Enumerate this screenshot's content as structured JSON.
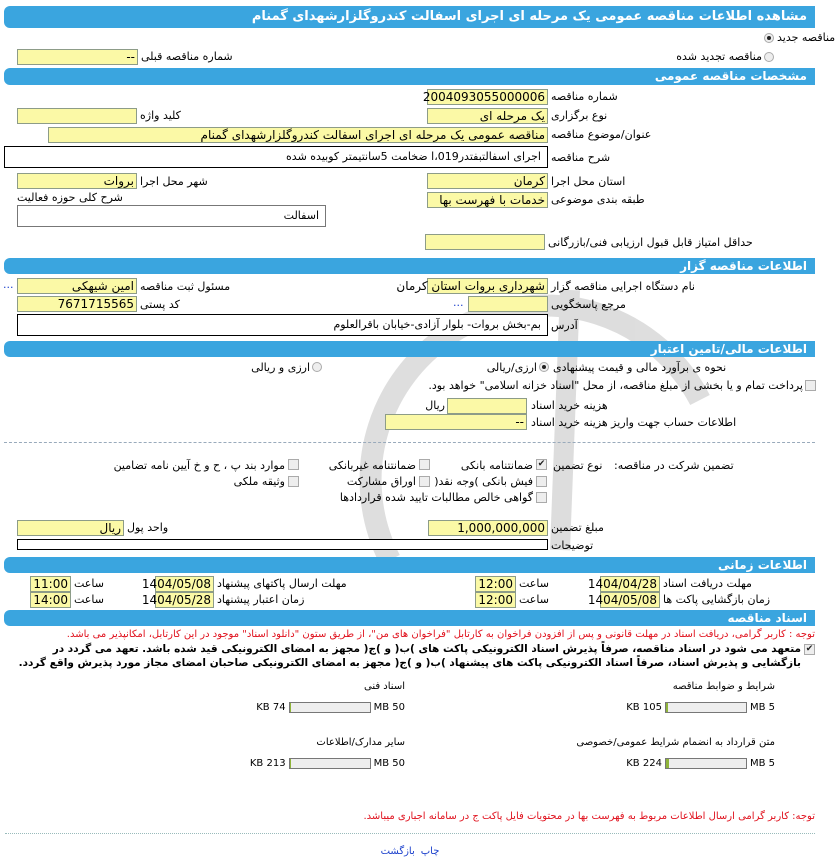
{
  "header": {
    "title": "مشاهده اطلاعات مناقصه عمومی یک مرحله ای اجرای اسفالت کندروگلزارشهدای گمنام"
  },
  "tender_type": {
    "new_label": "مناقصه جدید",
    "renewed_label": "مناقصه تجدید شده",
    "selected": "new",
    "prev_number_label": "شماره مناقصه قبلی",
    "prev_number": "--"
  },
  "general": {
    "section_title": "مشخصات مناقصه عمومی",
    "number_label": "شماره مناقصه",
    "number": "2004093055000006",
    "type_label": "نوع برگزاری",
    "type": "یک مرحله ای",
    "keyword_label": "کلید واژه",
    "keyword": "",
    "title_label": "عنوان/موضوع مناقصه",
    "title": "مناقصه عمومی یک مرحله ای اجرای اسفالت کندروگلزارشهدای گمنام",
    "desc_label": "شرح مناقصه",
    "desc": "اجرای اسفالتبفتدر019،ا ضخامت 5سانتیمتر کوبیده شده",
    "province_label": "استان محل اجرا",
    "province": "کرمان",
    "city_label": "شهر محل اجرا",
    "city": "بروات",
    "category_label": "طبقه بندی موضوعی",
    "category": "خدمات با فهرست بها",
    "activity_label": "شرح کلی حوزه فعالیت",
    "activity": "اسفالت",
    "min_score_label": "حداقل امتیاز قابل قبول ارزیابی فنی/بازرگانی",
    "min_score": ""
  },
  "organizer": {
    "section_title": "اطلاعات مناقصه گزار",
    "org_label": "نام دستگاه اجرایی مناقصه گزار",
    "org": "شهرداری بروات استان کرمان",
    "registrar_label": "مسئول ثبت مناقصه",
    "registrar": "امین شیهکی",
    "more": "...",
    "reference_label": "مرجع پاسخگویی",
    "reference": "",
    "postal_label": "کد پستی",
    "postal": "7671715565",
    "address_label": "آدرس",
    "address": "بم-بخش بروات- بلوار آزادی-خیابان باقرالعلوم"
  },
  "finance": {
    "section_title": "اطلاعات مالی/تامین اعتبار",
    "estimate_label": "نحوه ی برآورد مالی و قیمت پیشنهادی",
    "opt_rial": "ارزی/ریالی",
    "opt_both": "ارزی و ریالی",
    "selected": "rial",
    "treasury_text": "پرداخت تمام و یا بخشی از مبلغ مناقصه، از محل \"اسناد خزانه اسلامی\" خواهد بود.",
    "treasury_checked": false,
    "doc_cost_label": "هزینه خرید اسناد",
    "doc_cost": "",
    "doc_cost_unit": "ریال",
    "account_label": "اطلاعات حساب جهت واریز هزینه خرید اسناد",
    "account": "--"
  },
  "guarantee": {
    "label": "تضمین شرکت در مناقصه:",
    "type_label": "نوع تضمین",
    "options": [
      {
        "label": "ضمانتنامه بانکی",
        "checked": true
      },
      {
        "label": "ضمانتنامه غیربانکی",
        "checked": false
      },
      {
        "label": "موارد بند پ ، ح و خ آیین نامه تضامین",
        "checked": false
      },
      {
        "label": "فیش بانکی )وجه نقد(",
        "checked": false
      },
      {
        "label": "اوراق مشارکت",
        "checked": false
      },
      {
        "label": "وثیقه ملکی",
        "checked": false
      },
      {
        "label": "گواهی خالص مطالبات تایید شده قراردادها",
        "checked": false
      }
    ],
    "amount_label": "مبلغ تضمین",
    "amount": "1,000,000,000",
    "currency_label": "واحد پول",
    "currency": "ریال",
    "notes_label": "توضیحات",
    "notes": ""
  },
  "timing": {
    "section_title": "اطلاعات زمانی",
    "hour_label": "ساعت",
    "doc_deadline_label": "مهلت دریافت اسناد",
    "doc_deadline": "1404/04/28",
    "doc_deadline_time": "12:00",
    "submit_deadline_label": "مهلت ارسال پاکتهای پیشنهاد",
    "submit_deadline": "1404/05/08",
    "submit_deadline_time": "11:00",
    "opening_label": "زمان بازگشایی پاکت ها",
    "opening": "1404/05/08",
    "opening_time": "12:00",
    "validity_label": "زمان اعتبار پیشنهاد",
    "validity": "1404/05/28",
    "validity_time": "14:00"
  },
  "documents": {
    "section_title": "اسناد مناقصه",
    "notice": "توجه : کاربر گرامی، دریافت اسناد در مهلت قانونی و پس از افزودن فراخوان به کارتابل \"فراخوان های من\"، از طریق ستون \"دانلود اسناد\" موجود در این کارتابل، امکانپذیر می باشد.",
    "commit_line1": "متعهد می شود در اسناد مناقصه، صرفاً پذیرش اسناد الکترونیکی پاکت های )ب( و )ج( مجهز به امضای الکترونیکی قید شده باشد. تعهد می گردد در بازگشایی و پذیرش اسناد،",
    "commit_line2": "صرفاً اسناد الکترونیکی پاکت های پیشنهاد )ب( و )ج( مجهز به امضای الکترونیکی صاحبان امضای مجاز مورد پذیرش واقع گردد.",
    "commit_checked": true,
    "files": [
      {
        "label": "شرایط و ضوابط مناقصه",
        "size": "105 KB",
        "max": "5 MB",
        "fill_pct": 2
      },
      {
        "label": "اسناد فنی",
        "size": "74 KB",
        "max": "50 MB",
        "fill_pct": 0.2
      },
      {
        "label": "متن قرارداد به انضمام شرایط عمومی/خصوصی",
        "size": "224 KB",
        "max": "5 MB",
        "fill_pct": 4.4
      },
      {
        "label": "سایر مدارک/اطلاعات",
        "size": "213 KB",
        "max": "50 MB",
        "fill_pct": 0.4
      }
    ],
    "footer_notice": "توجه: کاربر گرامی ارسال اطلاعات مربوط به فهرست بها در محتویات فایل پاکت ج در سامانه اجباری میباشد."
  },
  "footer": {
    "print_label": "چاپ",
    "back_label": "بازگشت"
  },
  "colors": {
    "section_bar": "#3aa5df",
    "input_bg": "#fbf9a6",
    "notice": "#e0101c",
    "link": "#1a3fcc"
  }
}
